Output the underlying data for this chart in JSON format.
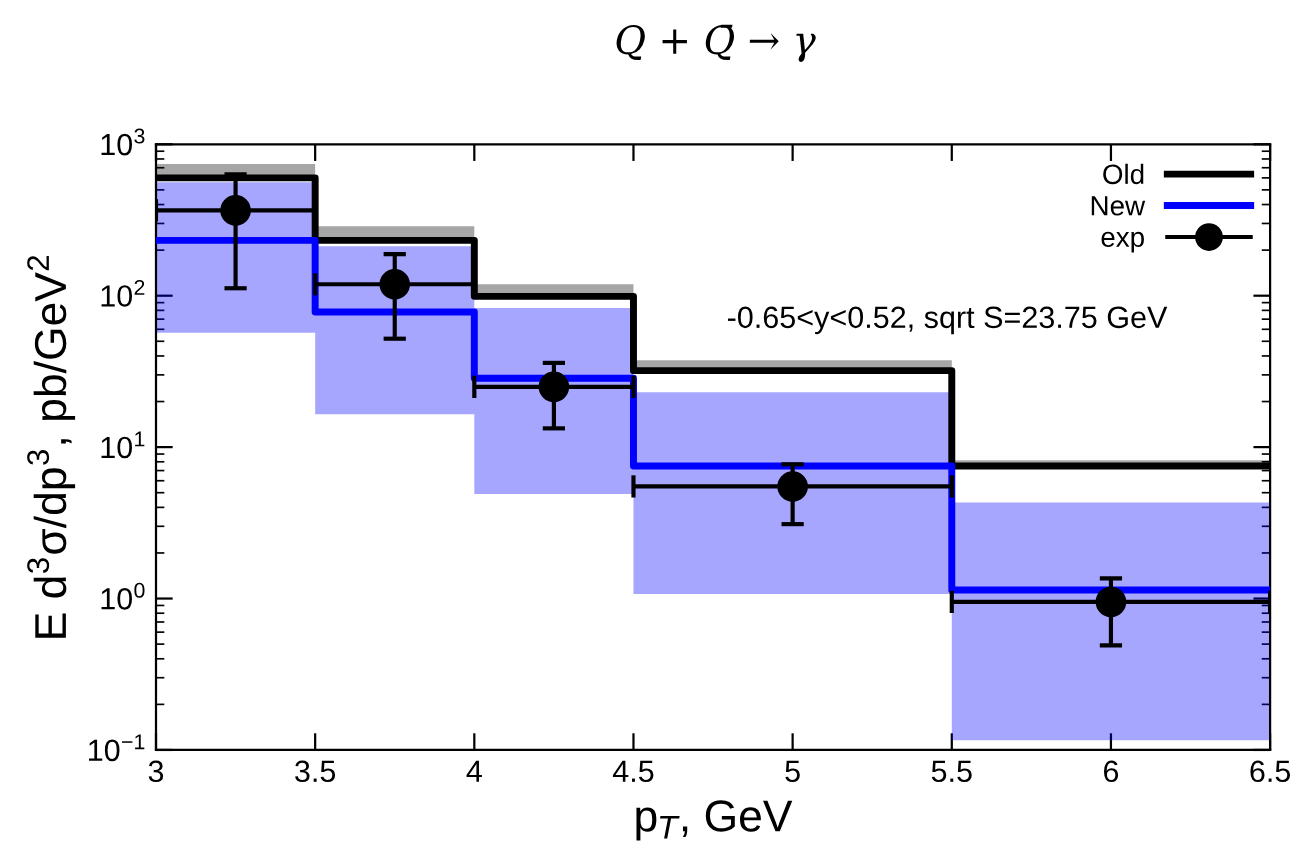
{
  "chart_data": {
    "type": "step",
    "title": "Q + Q̄ → γ",
    "xlabel": "p$_{T}$, GeV",
    "ylabel": "E d$^{3}$σ/dp$^{3}$, pb/GeV$^{2}$",
    "series": [
      {
        "name": "Old",
        "color": "#000000",
        "x": [
          3,
          3.5,
          4,
          4.5,
          5.5,
          6.5
        ],
        "values": [
          600,
          232,
          99,
          32,
          7.5,
          7.5
        ],
        "lower": [
          600,
          232,
          99,
          32,
          7.5,
          7.5
        ],
        "upper": [
          740,
          288,
          119,
          37.5,
          8.2,
          8.2
        ]
      },
      {
        "name": "New",
        "color": "#0000ff",
        "x": [
          3,
          3.5,
          4,
          4.5,
          5.5,
          6.5
        ],
        "values": [
          232,
          78,
          28.5,
          7.5,
          1.14,
          1.14
        ],
        "lower": [
          57,
          16.5,
          4.9,
          1.07,
          0.116,
          0.116
        ],
        "upper": [
          561,
          212,
          83,
          23,
          4.3,
          4.3
        ]
      },
      {
        "name": "exp",
        "type": "scatter",
        "color": "#000000",
        "marker": "circle",
        "x": [
          3.25,
          3.75,
          4.25,
          5,
          6
        ],
        "values": [
          366,
          119,
          25,
          5.5,
          0.95
        ],
        "errors": [
          [
            112,
            634
          ],
          [
            52,
            188
          ],
          [
            13.3,
            36
          ],
          [
            3.1,
            7.7
          ],
          [
            0.49,
            1.36
          ]
        ],
        "xerrors": [
          0.25,
          0.25,
          0.25,
          0.5,
          0.5
        ]
      }
    ],
    "annotations": [
      "-0.65<y<0.52, sqrt S=23.75 GeV"
    ],
    "log": "y",
    "xlim": [
      3,
      6.5
    ],
    "xticks": [
      3,
      3.5,
      4,
      4.5,
      5,
      5.5,
      6,
      6.5
    ],
    "ylim": [
      0.1,
      1000
    ],
    "yticks": [
      {
        "value": 0.1,
        "label": "10$^{−1}$"
      },
      {
        "value": 1,
        "label": "10$^{0}$"
      },
      {
        "value": 10,
        "label": "10$^{1}$"
      },
      {
        "value": 100,
        "label": "10$^{2}$"
      },
      {
        "value": 1000,
        "label": "10$^{3}$"
      }
    ],
    "legend": "top right"
  }
}
